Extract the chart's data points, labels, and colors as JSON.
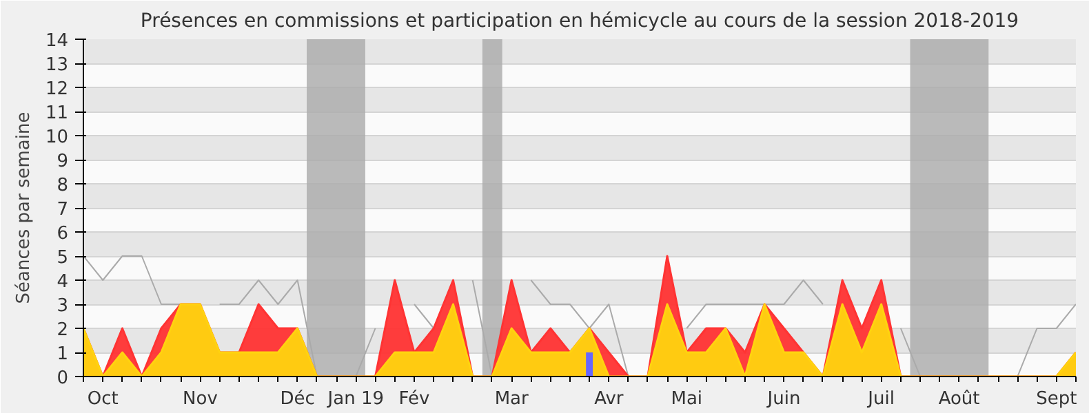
{
  "chart_data": {
    "type": "area",
    "title": "Présences en commissions et participation en hémicycle au cours de la session 2018-2019",
    "ylabel": "Séances par semaine",
    "categories": [
      null,
      "Oct",
      null,
      null,
      null,
      null,
      "Nov",
      null,
      null,
      null,
      null,
      "Déc",
      null,
      null,
      "Jan 19",
      null,
      null,
      "Fév",
      null,
      null,
      null,
      null,
      "Mar",
      null,
      null,
      null,
      null,
      "Avr",
      null,
      null,
      null,
      "Mai",
      null,
      null,
      null,
      null,
      "Juin",
      null,
      null,
      null,
      null,
      "Juil",
      null,
      null,
      null,
      "Août",
      null,
      null,
      null,
      null,
      "Sept",
      null
    ],
    "series": [
      {
        "type": "line",
        "color": "#aaaaaa",
        "values": [
          5,
          4,
          5,
          5,
          3,
          3,
          null,
          3,
          3,
          4,
          3,
          4,
          0,
          0,
          0,
          2,
          null,
          3,
          2,
          null,
          4,
          0,
          null,
          4,
          3,
          3,
          2,
          3,
          0,
          0,
          null,
          2,
          3,
          3,
          3,
          3,
          3,
          4,
          3,
          null,
          null,
          null,
          2,
          0,
          0,
          0,
          0,
          0,
          0,
          2,
          2,
          3
        ]
      },
      {
        "color": "#ff3333",
        "values": [
          2,
          0,
          2,
          0,
          2,
          3,
          3,
          1,
          1,
          3,
          2,
          2,
          0,
          0,
          0,
          0,
          4,
          1,
          2,
          4,
          0,
          0,
          4,
          1,
          2,
          1,
          2,
          1,
          0,
          0,
          5,
          1,
          2,
          2,
          1,
          3,
          2,
          1,
          0,
          4,
          2,
          4,
          0,
          0,
          0,
          0,
          0,
          0,
          0,
          0,
          0,
          1
        ]
      },
      {
        "color": "#ffd30f",
        "values": [
          2,
          0,
          1,
          0,
          1,
          3,
          3,
          1,
          1,
          1,
          1,
          2,
          0,
          0,
          0,
          0,
          1,
          1,
          1,
          3,
          0,
          0,
          2,
          1,
          1,
          1,
          2,
          0,
          0,
          0,
          3,
          1,
          1,
          2,
          0,
          3,
          1,
          1,
          0,
          3,
          1,
          3,
          0,
          0,
          0,
          0,
          0,
          0,
          0,
          0,
          0,
          1
        ]
      },
      {
        "type": "bar",
        "color": "#6666ff",
        "values": [
          null,
          null,
          null,
          null,
          null,
          null,
          null,
          null,
          null,
          null,
          null,
          null,
          null,
          null,
          null,
          null,
          null,
          null,
          null,
          null,
          null,
          null,
          null,
          null,
          null,
          null,
          1,
          null,
          null,
          null,
          null,
          null,
          null,
          null,
          null,
          null,
          null,
          null,
          null,
          null,
          null,
          null,
          null,
          null,
          null,
          null,
          null,
          null,
          null,
          null,
          null,
          null
        ]
      }
    ],
    "ylim": [
      0,
      14
    ],
    "yticks": [
      0,
      1,
      2,
      3,
      4,
      5,
      6,
      7,
      8,
      9,
      10,
      11,
      12,
      13,
      14
    ],
    "grid": "y"
  }
}
